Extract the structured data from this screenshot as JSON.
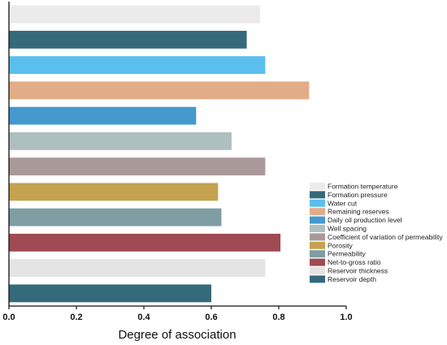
{
  "chart_data": {
    "type": "bar",
    "orientation": "horizontal",
    "title": "",
    "xlabel": "Degree of association",
    "ylabel": "",
    "xlim": [
      0,
      1
    ],
    "x_ticks": [
      "0.0",
      "0.2",
      "0.4",
      "0.6",
      "0.8",
      "1.0"
    ],
    "grid": false,
    "legend_position": "bottom-right",
    "categories": [
      "Formation temperature",
      "Formation pressure",
      "Water cut",
      "Remaining reserves",
      "Daily oil production level",
      "Well spacing",
      "Coefficient of variation of permeability",
      "Porosity",
      "Permeability",
      "Net-to-gross ratio",
      "Reservoir thickness",
      "Reservoir depth"
    ],
    "values": [
      0.745,
      0.705,
      0.76,
      0.89,
      0.555,
      0.66,
      0.76,
      0.62,
      0.63,
      0.805,
      0.76,
      0.6
    ],
    "colors": [
      "#ebebeb",
      "#356a7b",
      "#5bbfee",
      "#e3ac88",
      "#4499cf",
      "#adbfbf",
      "#a99a99",
      "#c4a250",
      "#7e9ea4",
      "#a04a53",
      "#e4e4e4",
      "#356a7b"
    ]
  }
}
